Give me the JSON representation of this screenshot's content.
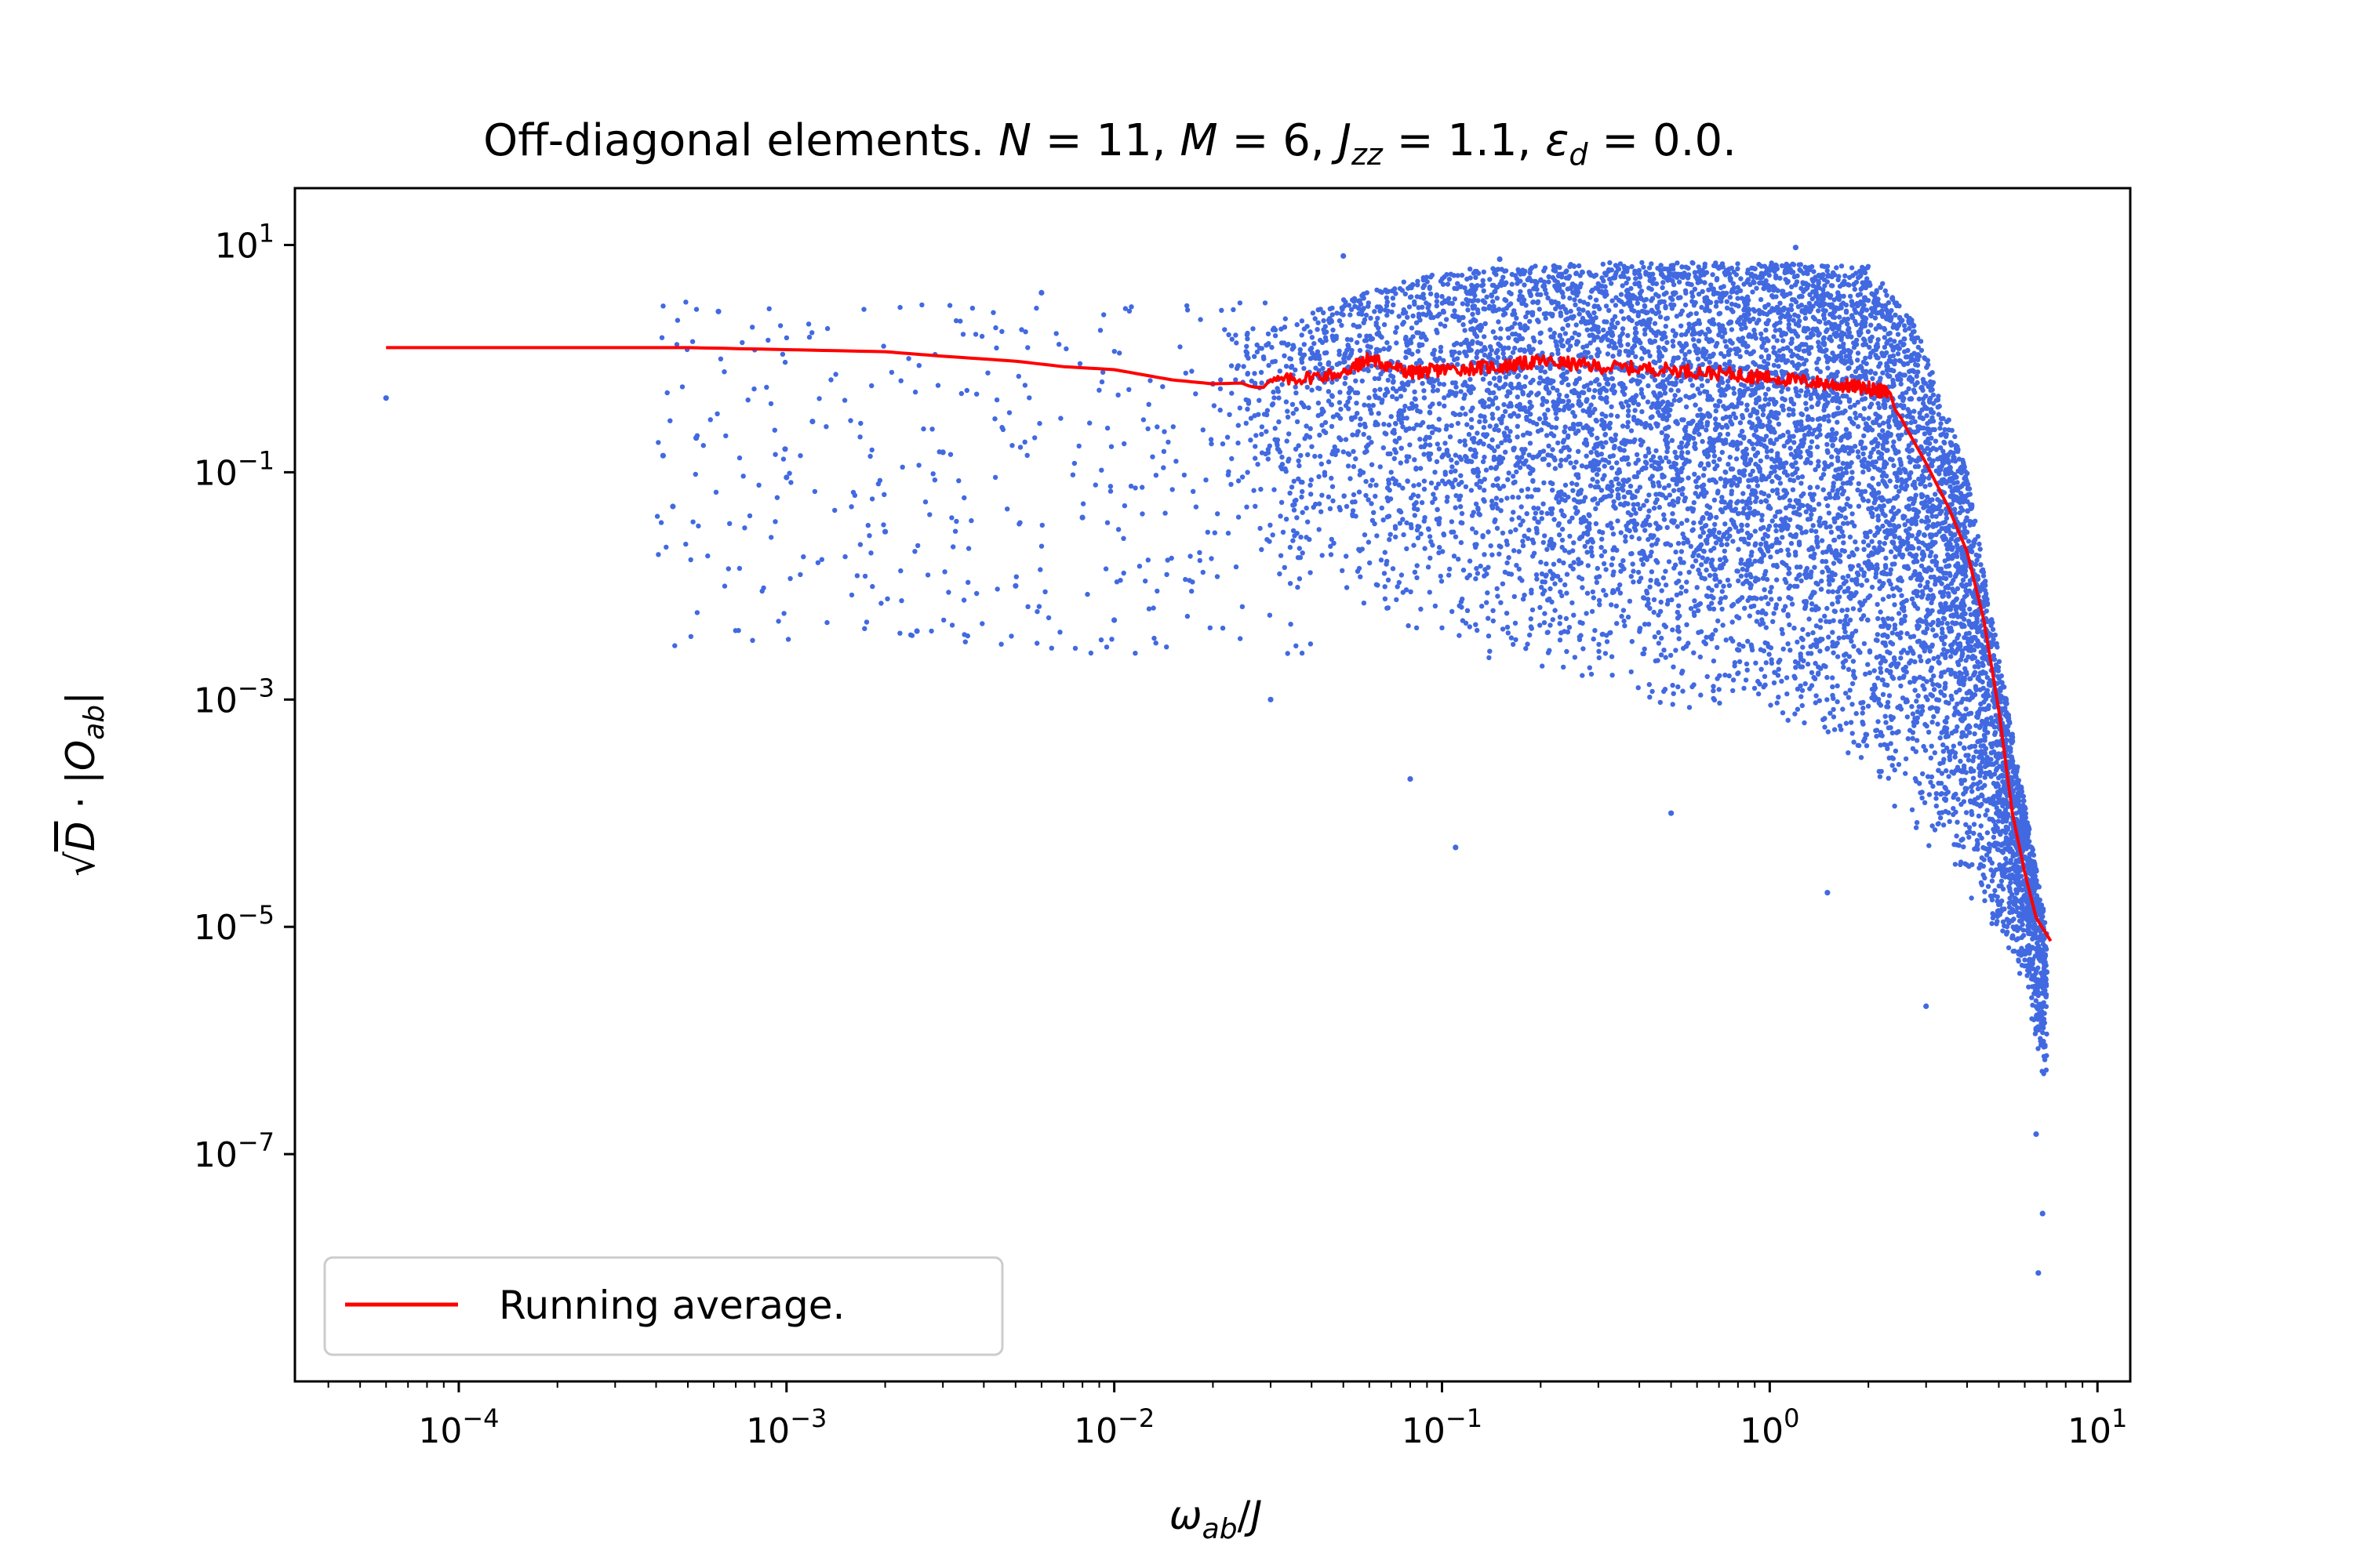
{
  "chart_data": {
    "type": "scatter",
    "title_parts": [
      "Off-diagonal elements. ",
      "N",
      " = 11, ",
      "M",
      " = 6, ",
      "J",
      "zz",
      " = 1.1, ",
      "ε",
      "d",
      " = 0.0."
    ],
    "xlabel_parts": [
      "ω",
      "ab",
      "/",
      "J"
    ],
    "ylabel_parts": [
      "√",
      "D",
      " · |",
      "O",
      "ab",
      "|"
    ],
    "x_scale": "log",
    "y_scale": "log",
    "xlim_log10": [
      -4.5,
      1.1
    ],
    "ylim_log10": [
      -9.0,
      1.5
    ],
    "x_tick_exponents": [
      -4,
      -3,
      -2,
      -1,
      0,
      1
    ],
    "y_tick_exponents": [
      -7,
      -5,
      -3,
      -1,
      1
    ],
    "tick_base": "10",
    "grid": false,
    "legend_position": "lower-left",
    "series": [
      {
        "name": "scatter points",
        "kind": "scatter",
        "color": "#4169e1",
        "sample_points": [
          [
            6e-05,
            0.45
          ],
          [
            0.00042,
            0.14
          ],
          [
            0.00045,
            0.05
          ],
          [
            0.00053,
            0.2
          ],
          [
            0.00062,
            2.6
          ],
          [
            0.00099,
            0.16
          ],
          [
            0.001,
            0.09
          ],
          [
            0.0012,
            0.28
          ],
          [
            0.002,
            0.03
          ],
          [
            0.0025,
            0.004
          ],
          [
            0.003,
            0.15
          ],
          [
            0.005,
            0.01
          ],
          [
            0.006,
            3.8
          ],
          [
            0.008,
            0.04
          ],
          [
            0.01,
            0.005
          ],
          [
            0.02,
            0.6
          ],
          [
            0.03,
            0.001
          ],
          [
            0.05,
            8.0
          ],
          [
            0.08,
            0.0002
          ],
          [
            0.11,
            5e-05
          ],
          [
            0.15,
            7.5
          ],
          [
            0.5,
            0.0001
          ],
          [
            1.2,
            9.5
          ],
          [
            1.5,
            2e-05
          ],
          [
            3.0,
            2e-06
          ],
          [
            5.5,
            8e-06
          ],
          [
            6.5,
            1.5e-07
          ],
          [
            6.6,
            9e-09
          ],
          [
            7.0,
            4e-06
          ],
          [
            6.8,
            3e-08
          ]
        ],
        "band_lower": [
          [
            0.02,
            0.03
          ],
          [
            0.1,
            0.003
          ],
          [
            0.5,
            0.0008
          ],
          [
            1.0,
            0.0006
          ],
          [
            2.0,
            0.0002
          ],
          [
            4.0,
            2e-05
          ],
          [
            6.0,
            3e-06
          ],
          [
            7.0,
            3e-07
          ]
        ],
        "band_upper": [
          [
            0.02,
            1.5
          ],
          [
            0.1,
            6.0
          ],
          [
            0.3,
            7.0
          ],
          [
            1.0,
            7.0
          ],
          [
            2.0,
            6.5
          ],
          [
            2.8,
            2.0
          ],
          [
            4.0,
            0.1
          ],
          [
            5.5,
            0.0005
          ],
          [
            7.0,
            1e-05
          ]
        ]
      },
      {
        "name": "Running average.",
        "kind": "line",
        "color": "#ff0000",
        "x": [
          6e-05,
          0.0001,
          0.0003,
          0.0005,
          0.001,
          0.002,
          0.003,
          0.005,
          0.007,
          0.01,
          0.015,
          0.02,
          0.03,
          0.05,
          0.06,
          0.08,
          0.1,
          0.15,
          0.2,
          0.3,
          0.5,
          0.8,
          1.0,
          1.5,
          2.0,
          2.3,
          2.6,
          3.0,
          3.5,
          4.0,
          4.5,
          5.0,
          5.5,
          6.0,
          6.5,
          7.2
        ],
        "y": [
          1.25,
          1.25,
          1.25,
          1.25,
          1.2,
          1.15,
          1.05,
          0.95,
          0.85,
          0.8,
          0.65,
          0.6,
          0.62,
          0.75,
          1.0,
          0.75,
          0.8,
          0.85,
          0.95,
          0.85,
          0.8,
          0.72,
          0.68,
          0.6,
          0.55,
          0.5,
          0.25,
          0.12,
          0.05,
          0.02,
          0.005,
          0.0008,
          0.0001,
          3e-05,
          1.2e-05,
          7.5e-06
        ]
      }
    ]
  }
}
